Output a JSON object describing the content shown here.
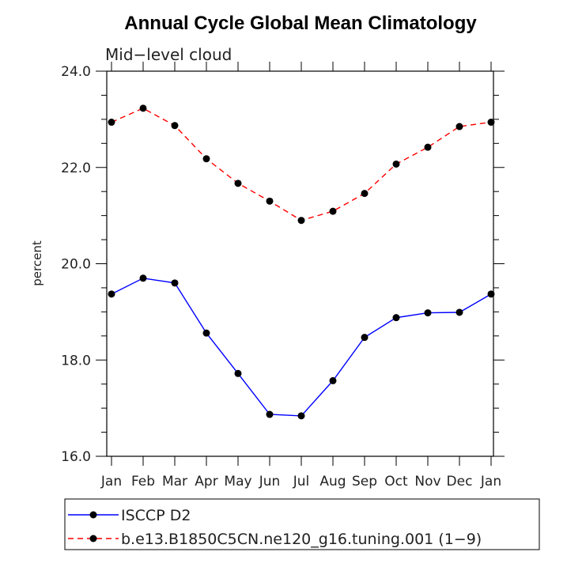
{
  "chart_data": {
    "type": "line",
    "title": "Annual Cycle Global Mean Climatology",
    "subtitle": "Mid−level cloud",
    "xlabel": "",
    "ylabel": "percent",
    "categories": [
      "Jan",
      "Feb",
      "Mar",
      "Apr",
      "May",
      "Jun",
      "Jul",
      "Aug",
      "Sep",
      "Oct",
      "Nov",
      "Dec",
      "Jan"
    ],
    "ylim": [
      16.0,
      24.0
    ],
    "yticks": [
      16.0,
      18.0,
      20.0,
      22.0,
      24.0
    ],
    "ytick_labels": [
      "16.0",
      "18.0",
      "20.0",
      "22.0",
      "24.0"
    ],
    "y_minor_step": 0.5,
    "grid": false,
    "legend_position": "bottom",
    "series": [
      {
        "name": "ISCCP D2",
        "color": "#0000ff",
        "line_style": "solid",
        "marker": "filled-circle",
        "values": [
          19.37,
          19.7,
          19.6,
          18.56,
          17.72,
          16.87,
          16.84,
          17.57,
          18.47,
          18.88,
          18.98,
          18.99,
          19.37
        ]
      },
      {
        "name": "b.e13.B1850C5CN.ne120_g16.tuning.001 (1−9)",
        "color": "#ff0000",
        "line_style": "dashed",
        "marker": "filled-circle",
        "values": [
          22.94,
          23.23,
          22.87,
          22.18,
          21.67,
          21.3,
          20.9,
          21.09,
          21.46,
          22.07,
          22.42,
          22.85,
          22.94
        ]
      }
    ]
  }
}
